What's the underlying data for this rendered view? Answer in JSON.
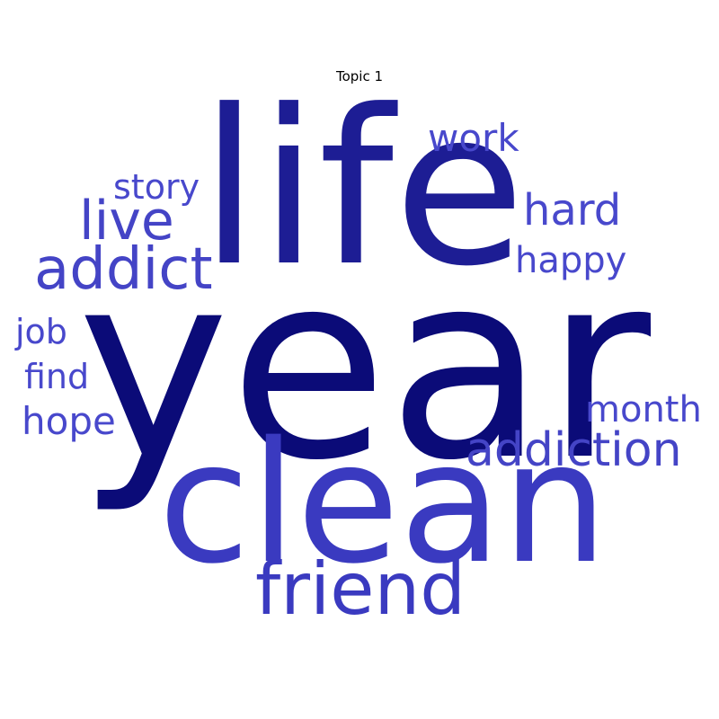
{
  "title": "Topic 1",
  "colors": {
    "background": "#ffffff",
    "darkest": "#0b0b78",
    "dark": "#1d1d94",
    "medium": "#3a3ac0",
    "light": "#4848cc"
  },
  "words": [
    {
      "id": "year",
      "text": "year",
      "color": "#0b0b78"
    },
    {
      "id": "life",
      "text": "life",
      "color": "#1d1d94"
    },
    {
      "id": "clean",
      "text": "clean",
      "color": "#3a3ac0"
    },
    {
      "id": "friend",
      "text": "friend",
      "color": "#3a3ac0"
    },
    {
      "id": "addict",
      "text": "addict",
      "color": "#4444c6"
    },
    {
      "id": "live",
      "text": "live",
      "color": "#4444c6"
    },
    {
      "id": "addiction",
      "text": "addiction",
      "color": "#4444c6"
    },
    {
      "id": "hard",
      "text": "hard",
      "color": "#4848cc"
    },
    {
      "id": "work",
      "text": "work",
      "color": "#4848cc"
    },
    {
      "id": "hope",
      "text": "hope",
      "color": "#4848cc"
    },
    {
      "id": "story",
      "text": "story",
      "color": "#4848cc"
    },
    {
      "id": "happy",
      "text": "happy",
      "color": "#4848cc"
    },
    {
      "id": "month",
      "text": "month",
      "color": "#4848cc"
    },
    {
      "id": "find",
      "text": "find",
      "color": "#4848cc"
    },
    {
      "id": "job",
      "text": "job",
      "color": "#4848cc"
    }
  ]
}
